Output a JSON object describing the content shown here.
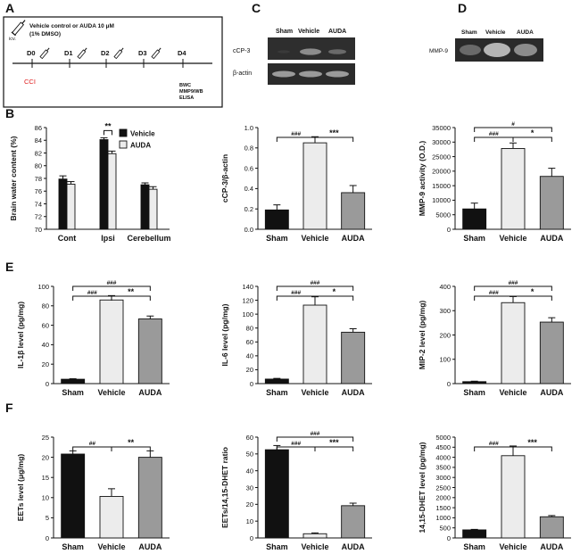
{
  "panel_labels": [
    "A",
    "B",
    "C",
    "D",
    "E",
    "F"
  ],
  "scheme": {
    "treatment": "Vehicle control  or  AUDA 10 μM",
    "dmso": "(1% DMSO)",
    "route": "icv.",
    "days": [
      "D0",
      "D1",
      "D2",
      "D3",
      "D4"
    ],
    "injury": "CCI",
    "outcomes": [
      "BWC",
      "MMP9/WB",
      "ELISA"
    ]
  },
  "colors": {
    "sham": "#111111",
    "vehicle": "#ececec",
    "auda": "#9a9a9a",
    "cci": "#e02020"
  },
  "blots": {
    "c": {
      "lanes": [
        "Sham",
        "Vehicle",
        "AUDA"
      ],
      "rows": [
        "cCP-3",
        "β-actin"
      ]
    },
    "d": {
      "lanes": [
        "Sham",
        "Vehicle",
        "AUDA"
      ],
      "rows": [
        "MMP-9"
      ]
    }
  },
  "chart_data": [
    {
      "id": "B",
      "type": "bar",
      "ylabel": "Brain water content (%)",
      "categories": [
        "Cont",
        "Ipsi",
        "Cerebellum"
      ],
      "ylim": [
        70,
        86
      ],
      "yticks": [
        "70",
        "72",
        "74",
        "76",
        "78",
        "80",
        "82",
        "84",
        "86"
      ],
      "series": [
        {
          "name": "Vehicle",
          "values": [
            77.9,
            84.1,
            77.0
          ],
          "err": [
            0.5,
            0.3,
            0.3
          ]
        },
        {
          "name": "AUDA",
          "values": [
            77.1,
            81.9,
            76.3
          ],
          "err": [
            0.4,
            0.4,
            0.4
          ]
        }
      ],
      "legend": [
        "Vehicle",
        "AUDA"
      ],
      "annotations": [
        {
          "text": "**",
          "group": 1
        }
      ]
    },
    {
      "id": "C",
      "type": "bar",
      "ylabel": "cCP-3/β-actin",
      "categories": [
        "Sham",
        "Vehicle",
        "AUDA"
      ],
      "ylim": [
        0,
        1.0
      ],
      "yticks": [
        "0.0",
        "0.2",
        "0.4",
        "0.6",
        "0.8",
        "1.0"
      ],
      "values": [
        0.19,
        0.85,
        0.36
      ],
      "err": [
        0.05,
        0.06,
        0.07
      ],
      "annotations": [
        {
          "text": "###",
          "from": 0,
          "to": 1,
          "level": 0
        },
        {
          "text": "***",
          "from": 1,
          "to": 2,
          "level": 0
        }
      ]
    },
    {
      "id": "D",
      "type": "bar",
      "ylabel": "MMP-9 activity (O.D.)",
      "categories": [
        "Sham",
        "Vehicle",
        "AUDA"
      ],
      "ylim": [
        0,
        35000
      ],
      "yticks": [
        "0",
        "5000",
        "10000",
        "15000",
        "20000",
        "25000",
        "30000",
        "35000"
      ],
      "values": [
        7000,
        27800,
        18200
      ],
      "err": [
        2000,
        1900,
        2800
      ],
      "annotations": [
        {
          "text": "###",
          "from": 0,
          "to": 1,
          "level": 0
        },
        {
          "text": "*",
          "from": 1,
          "to": 2,
          "level": 0
        },
        {
          "text": "#",
          "from": 0,
          "to": 2,
          "level": 1
        }
      ]
    },
    {
      "id": "E1",
      "type": "bar",
      "ylabel": "IL-1β level (pg/mg)",
      "categories": [
        "Sham",
        "Vehicle",
        "AUDA"
      ],
      "ylim": [
        0,
        100
      ],
      "yticks": [
        "0",
        "20",
        "40",
        "60",
        "80",
        "100"
      ],
      "values": [
        4.5,
        86,
        66.5
      ],
      "err": [
        0.5,
        4.5,
        3.0
      ],
      "annotations": [
        {
          "text": "###",
          "from": 0,
          "to": 1,
          "level": 0
        },
        {
          "text": "**",
          "from": 1,
          "to": 2,
          "level": 0
        },
        {
          "text": "###",
          "from": 0,
          "to": 2,
          "level": 1
        }
      ]
    },
    {
      "id": "E2",
      "type": "bar",
      "ylabel": "IL-6 level (pg/mg)",
      "categories": [
        "Sham",
        "Vehicle",
        "AUDA"
      ],
      "ylim": [
        0,
        140
      ],
      "yticks": [
        "0",
        "20",
        "40",
        "60",
        "80",
        "100",
        "120",
        "140"
      ],
      "values": [
        6.5,
        113,
        74
      ],
      "err": [
        1.0,
        12,
        5
      ],
      "annotations": [
        {
          "text": "###",
          "from": 0,
          "to": 1,
          "level": 0
        },
        {
          "text": "*",
          "from": 1,
          "to": 2,
          "level": 0
        },
        {
          "text": "###",
          "from": 0,
          "to": 2,
          "level": 1
        }
      ]
    },
    {
      "id": "E3",
      "type": "bar",
      "ylabel": "MIP-2 level (pg/mg)",
      "categories": [
        "Sham",
        "Vehicle",
        "AUDA"
      ],
      "ylim": [
        0,
        400
      ],
      "yticks": [
        "0",
        "100",
        "200",
        "300",
        "400"
      ],
      "values": [
        8,
        333,
        253
      ],
      "err": [
        2,
        25,
        18
      ],
      "annotations": [
        {
          "text": "###",
          "from": 0,
          "to": 1,
          "level": 0
        },
        {
          "text": "*",
          "from": 1,
          "to": 2,
          "level": 0
        },
        {
          "text": "###",
          "from": 0,
          "to": 2,
          "level": 1
        }
      ]
    },
    {
      "id": "F1",
      "type": "bar",
      "ylabel": "EETs level (μg/mg)",
      "categories": [
        "Sham",
        "Vehicle",
        "AUDA"
      ],
      "ylim": [
        0,
        25
      ],
      "yticks": [
        "0",
        "5",
        "10",
        "15",
        "20",
        "25"
      ],
      "values": [
        20.8,
        10.3,
        20.0
      ],
      "err": [
        0.8,
        1.9,
        1.6
      ],
      "annotations": [
        {
          "text": "##",
          "from": 0,
          "to": 1,
          "level": 0
        },
        {
          "text": "**",
          "from": 1,
          "to": 2,
          "level": 0
        }
      ]
    },
    {
      "id": "F2",
      "type": "bar",
      "ylabel": "EETs/14,15-DHET ratio",
      "categories": [
        "Sham",
        "Vehicle",
        "AUDA"
      ],
      "ylim": [
        0,
        60
      ],
      "yticks": [
        "0",
        "10",
        "20",
        "30",
        "40",
        "50",
        "60"
      ],
      "values": [
        52.5,
        2.5,
        19.2
      ],
      "err": [
        2.5,
        0.5,
        1.5
      ],
      "annotations": [
        {
          "text": "###",
          "from": 0,
          "to": 1,
          "level": 0
        },
        {
          "text": "***",
          "from": 1,
          "to": 2,
          "level": 0
        },
        {
          "text": "###",
          "from": 0,
          "to": 2,
          "level": 1
        }
      ]
    },
    {
      "id": "F3",
      "type": "bar",
      "ylabel": "14,15-DHET level (pg/mg)",
      "categories": [
        "Sham",
        "Vehicle",
        "AUDA"
      ],
      "ylim": [
        0,
        5000
      ],
      "yticks": [
        "0",
        "500",
        "1000",
        "1500",
        "2000",
        "2500",
        "3000",
        "3500",
        "4000",
        "4500",
        "5000"
      ],
      "values": [
        400,
        4080,
        1050
      ],
      "err": [
        25,
        480,
        60
      ],
      "annotations": [
        {
          "text": "###",
          "from": 0,
          "to": 1,
          "level": 0
        },
        {
          "text": "***",
          "from": 1,
          "to": 2,
          "level": 0
        }
      ]
    }
  ]
}
